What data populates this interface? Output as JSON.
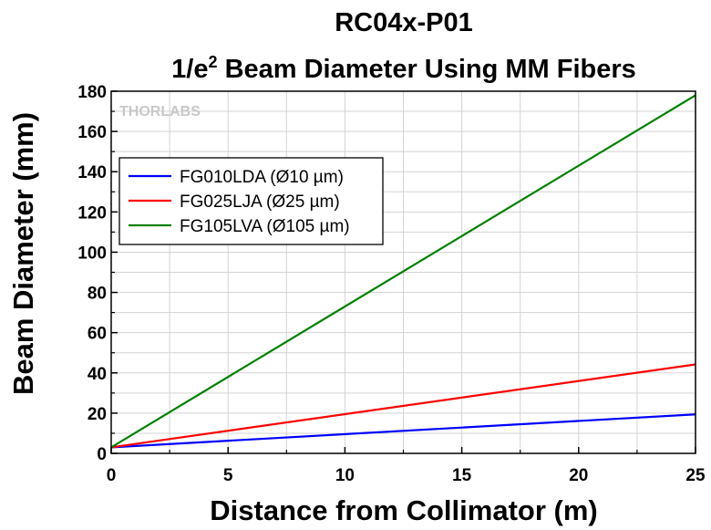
{
  "chart_data": {
    "type": "line",
    "title_line1": "RC04x-P01",
    "title_line2_prefix": "1/e",
    "title_line2_sup": "2",
    "title_line2_suffix": " Beam Diameter Using MM Fibers",
    "xlabel": "Distance from Collimator (m)",
    "ylabel": "Beam Diameter (mm)",
    "xlim": [
      0,
      25
    ],
    "ylim": [
      0,
      180
    ],
    "xticks": [
      "0",
      "5",
      "10",
      "15",
      "20",
      "25"
    ],
    "yticks": [
      "0",
      "20",
      "40",
      "60",
      "80",
      "100",
      "120",
      "140",
      "160",
      "180"
    ],
    "grid": true,
    "legend_position": "top-left",
    "watermark": "THORLABS",
    "series": [
      {
        "name": "FG010LDA (Ø10 µm)",
        "color": "#0000ff",
        "x": [
          0,
          25
        ],
        "values": [
          3.0,
          19.4
        ]
      },
      {
        "name": "FG025LJA (Ø25 µm)",
        "color": "#ff0000",
        "x": [
          0,
          25
        ],
        "values": [
          3.0,
          44.2
        ]
      },
      {
        "name": "FG105LVA (Ø105 µm)",
        "color": "#008000",
        "x": [
          0,
          25
        ],
        "values": [
          3.0,
          178.0
        ]
      }
    ]
  }
}
